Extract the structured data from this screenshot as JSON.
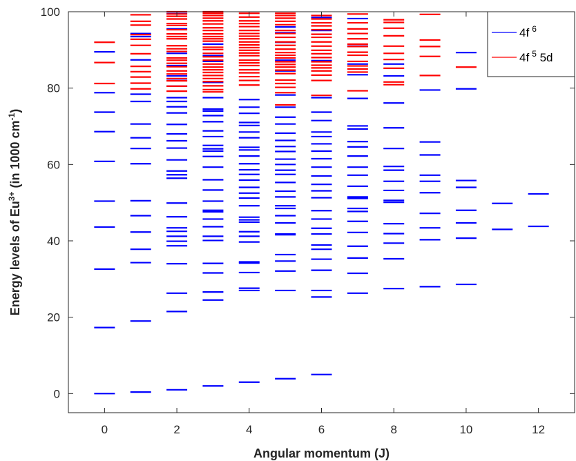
{
  "chart_data": {
    "type": "scatter",
    "marker": "horizontal-dash",
    "xlabel": "Angular momentum (J)",
    "ylabel": {
      "base": "Energy levels of Eu",
      "base_sup": "3+",
      "mid": " (in 1000 cm",
      "mid_sup": "-1",
      "end": ")"
    },
    "xlim": [
      -1,
      13
    ],
    "ylim": [
      -5,
      100
    ],
    "xticks": [
      0,
      2,
      4,
      6,
      8,
      10,
      12
    ],
    "yticks": [
      0,
      20,
      40,
      60,
      80,
      100
    ],
    "grid": false,
    "legend_position": "top-right",
    "series": [
      {
        "name": "4f",
        "sup": "6",
        "color": "#0000ff",
        "levels": {
          "0": [
            0,
            17.3,
            32.6,
            43.6,
            50.4,
            60.8,
            68.6,
            73.7,
            78.8,
            89.5
          ],
          "1": [
            0.4,
            19,
            34.3,
            37.8,
            42.3,
            46.6,
            50.5,
            60.2,
            64.2,
            67,
            70.6,
            76.5,
            78.4,
            87.4,
            93.5,
            94.3
          ],
          "2": [
            1,
            21.5,
            26.3,
            34,
            38.7,
            39.9,
            41.2,
            42.5,
            43.4,
            46.3,
            49.9,
            56.4,
            57.3,
            58.3,
            61.2,
            64.3,
            66.2,
            68,
            70.5,
            73.5,
            75.1,
            76.5,
            77.5,
            80.5,
            82,
            83.2,
            85.9,
            89.1,
            95.5,
            99.5
          ],
          "3": [
            2,
            24.5,
            26.6,
            31.6,
            34.1,
            40.1,
            41.2,
            43.7,
            45.7,
            47.6,
            48,
            50.4,
            53.3,
            56,
            59.3,
            62.1,
            63.5,
            64.1,
            65,
            67.3,
            68.8,
            71.2,
            72.8,
            74,
            74.5,
            77.5,
            81.5,
            87,
            88.5,
            91.5
          ],
          "4": [
            3,
            27,
            27.6,
            31.7,
            34.2,
            34.5,
            39.7,
            41.2,
            42.4,
            44.9,
            45.5,
            46.2,
            49.2,
            51.2,
            52.5,
            54,
            55.9,
            57.4,
            58.6,
            60.2,
            62.2,
            63.8,
            64.5,
            67,
            68.5,
            70.2,
            71,
            73.4,
            75,
            77
          ],
          "5": [
            3.9,
            27,
            32.1,
            34.7,
            36.4,
            41.6,
            41.8,
            44.7,
            46.6,
            48.5,
            49.2,
            51.5,
            53,
            55.3,
            57.4,
            58.5,
            60,
            61.4,
            63.4,
            64.7,
            66.3,
            68.2,
            70.6,
            72.4,
            75,
            78.2,
            84.5,
            87.3,
            92,
            94.5,
            96
          ],
          "6": [
            5,
            25.3,
            27,
            32.3,
            35.2,
            37.8,
            38.9,
            41.8,
            43.3,
            45.7,
            47.9,
            51.3,
            53.1,
            54.8,
            57,
            59.3,
            61.5,
            63.5,
            65.4,
            67.3,
            68.5,
            71.5,
            73.7,
            77.5,
            87.2,
            95.1,
            98.5
          ],
          "7": [
            26.3,
            31.5,
            35.5,
            38.6,
            42.2,
            45.1,
            47.7,
            48.5,
            51.1,
            51.5,
            54.3,
            57.2,
            59.3,
            62.2,
            64.6,
            66,
            69.3,
            70.1,
            77.3,
            83.5,
            86.3,
            91,
            98.2
          ],
          "8": [
            27.5,
            35.3,
            39.4,
            41.9,
            44.5,
            50.1,
            50.6,
            53.2,
            55.6,
            58.5,
            59.5,
            64.2,
            69.6,
            76.1,
            83.2,
            86.3
          ],
          "9": [
            28,
            40.3,
            43.4,
            47.2,
            52.6,
            55.6,
            57.2,
            62.5,
            65.9,
            79.5
          ],
          "10": [
            28.6,
            40.7,
            44.7,
            48,
            54,
            55.8,
            79.8,
            89.3
          ],
          "11": [
            43,
            49.8
          ],
          "12": [
            43.8,
            52.3
          ]
        }
      },
      {
        "name": "4f",
        "sup": "5",
        "suffix": " 5d",
        "color": "#ff0000",
        "levels": {
          "0": [
            81.2,
            86.7,
            92
          ],
          "1": [
            79.8,
            81.3,
            82.9,
            84.3,
            85.7,
            89,
            91.2,
            92.8,
            94,
            96.5,
            97.5,
            99.2
          ],
          "2": [
            79.2,
            80.5,
            81.9,
            82.5,
            83.7,
            84.5,
            85.6,
            86.5,
            87.3,
            87.9,
            89.6,
            90.3,
            91.1,
            92.9,
            93.5,
            94.2,
            95.3,
            96.4,
            96.9,
            98.1,
            98.8,
            99.4,
            100
          ],
          "3": [
            79,
            79.6,
            80.6,
            81.7,
            82.5,
            83.3,
            84.1,
            84.8,
            85.5,
            86.3,
            87.3,
            88.2,
            89.1,
            90.1,
            90.7,
            92.3,
            92.9,
            93.5,
            94.2,
            95.1,
            95.8,
            96.8,
            97.6,
            98.3,
            99,
            99.6,
            100
          ],
          "4": [
            80.8,
            82,
            83,
            84,
            84.8,
            85.9,
            86.6,
            87.3,
            88.5,
            89.2,
            89.9,
            90.6,
            91.3,
            92.1,
            92.9,
            93.6,
            94.3,
            95.1,
            96.1,
            96.9,
            97.6,
            98.6,
            99.6
          ],
          "5": [
            75.6,
            78.8,
            80.2,
            81.2,
            82.1,
            83.8,
            84.7,
            85.5,
            86.2,
            86.9,
            87.9,
            88.6,
            89.3,
            90.2,
            91.2,
            92.1,
            93.3,
            94.3,
            95.1,
            96.6,
            97.5,
            98.3,
            99,
            99.6
          ],
          "6": [
            78.1,
            82,
            83.4,
            84.5,
            85.3,
            86,
            86.9,
            88,
            89,
            89.9,
            91,
            92.1,
            93.3,
            94.1,
            95.3,
            96.3,
            97.1,
            98.1,
            99
          ],
          "7": [
            79.3,
            84.2,
            85,
            85.8,
            87,
            88.6,
            89.4,
            90.9,
            91.5,
            92.9,
            94.3,
            95.5,
            97.1,
            99.4
          ],
          "8": [
            80.9,
            81.6,
            85.2,
            87.5,
            89.1,
            91,
            93.7,
            95.7,
            97.2,
            97.9
          ],
          "9": [
            83.3,
            88.3,
            90.9,
            92.6,
            99.3
          ],
          "10": [
            85.5
          ]
        }
      }
    ]
  }
}
